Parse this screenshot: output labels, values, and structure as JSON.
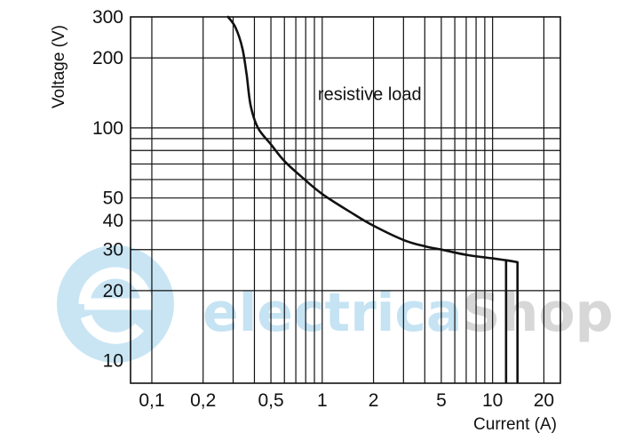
{
  "chart_data": {
    "type": "line",
    "title": "",
    "xlabel": "Current (A)",
    "ylabel": "Voltage (V)",
    "x_scale": "log",
    "y_scale": "log",
    "xlim": [
      0.075,
      25
    ],
    "ylim": [
      8,
      300
    ],
    "x_ticks": [
      {
        "value": 0.1,
        "label": "0,1"
      },
      {
        "value": 0.2,
        "label": "0,2"
      },
      {
        "value": 0.5,
        "label": "0,5"
      },
      {
        "value": 1,
        "label": "1"
      },
      {
        "value": 2,
        "label": "2"
      },
      {
        "value": 5,
        "label": "5"
      },
      {
        "value": 10,
        "label": "10"
      },
      {
        "value": 20,
        "label": "20"
      }
    ],
    "y_ticks": [
      {
        "value": 10,
        "label": "10"
      },
      {
        "value": 20,
        "label": "20"
      },
      {
        "value": 30,
        "label": "30"
      },
      {
        "value": 40,
        "label": "40"
      },
      {
        "value": 50,
        "label": "50"
      },
      {
        "value": 100,
        "label": "100"
      },
      {
        "value": 200,
        "label": "200"
      },
      {
        "value": 300,
        "label": "300"
      }
    ],
    "x_grid": [
      0.1,
      0.2,
      0.3,
      0.4,
      0.5,
      0.6,
      0.7,
      0.8,
      0.9,
      1,
      2,
      3,
      4,
      5,
      6,
      7,
      8,
      9,
      10,
      20
    ],
    "y_grid": [
      20,
      30,
      40,
      50,
      60,
      70,
      80,
      90,
      100,
      200
    ],
    "grid": true,
    "series": [
      {
        "name": "",
        "color": "#111111",
        "x": [
          0.28,
          0.31,
          0.34,
          0.36,
          0.38,
          0.42,
          0.5,
          0.6,
          0.75,
          1.0,
          1.5,
          2.0,
          3.0,
          4.0,
          5.0,
          7.0,
          10.0,
          12.0,
          14.0
        ],
        "y": [
          300,
          270,
          220,
          170,
          125,
          100,
          85,
          72,
          62,
          52,
          43,
          38,
          33,
          31,
          30,
          28.5,
          27.5,
          27,
          26.5
        ]
      }
    ],
    "vertical_drops": [
      {
        "x": 12,
        "y_from": 27,
        "y_to": 8
      },
      {
        "x": 14,
        "y_from": 26.5,
        "y_to": 8
      }
    ],
    "annotations": [
      {
        "text": "resistive load",
        "x": 1.9,
        "y": 140
      }
    ],
    "watermark": {
      "text_part1": "electrica",
      "text_part2": "Shop",
      "color1": "#bfe0f2",
      "color2": "#d3d3d3"
    }
  }
}
